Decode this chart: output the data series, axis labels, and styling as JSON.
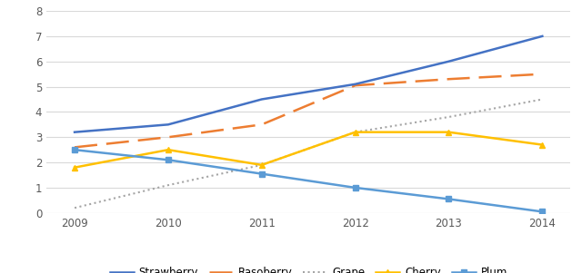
{
  "years": [
    2009,
    2010,
    2011,
    2012,
    2013,
    2014
  ],
  "strawberry": [
    3.2,
    3.5,
    4.5,
    5.1,
    6.0,
    7.0
  ],
  "raspberry": [
    2.6,
    3.0,
    3.5,
    5.05,
    5.3,
    5.5
  ],
  "grape": [
    0.2,
    1.1,
    1.9,
    3.2,
    3.8,
    4.5
  ],
  "cherry": [
    1.8,
    2.5,
    1.9,
    3.2,
    3.2,
    2.7
  ],
  "plum": [
    2.5,
    2.1,
    1.55,
    1.0,
    0.55,
    0.05
  ],
  "strawberry_color": "#4472C4",
  "raspberry_color": "#ED7D31",
  "grape_color": "#A5A5A5",
  "cherry_color": "#FFC000",
  "plum_color": "#5B9BD5",
  "ylim": [
    0,
    8
  ],
  "yticks": [
    0,
    1,
    2,
    3,
    4,
    5,
    6,
    7,
    8
  ],
  "bg_color": "#FFFFFF",
  "grid_color": "#D9D9D9"
}
